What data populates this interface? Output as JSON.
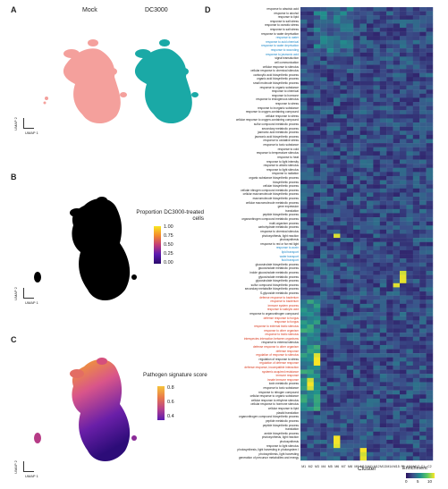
{
  "panels": {
    "a": {
      "letter": "A",
      "labels": [
        "Mock",
        "DC3000"
      ],
      "umap_x": "UMAP 1",
      "umap_y": "UMAP 2",
      "colors": [
        "#f4a09c",
        "#1aa9a6"
      ]
    },
    "b": {
      "letter": "B",
      "legend_title": "Proportion DC3000-treated cells",
      "legend_ticks": [
        "1.00",
        "0.75",
        "0.50",
        "0.25",
        "0.00"
      ],
      "umap_x": "UMAP 1",
      "umap_y": "UMAP 2"
    },
    "c": {
      "letter": "C",
      "legend_title": "Pathogen signature score",
      "legend_ticks": [
        "0.8",
        "0.6",
        "0.4"
      ],
      "umap_x": "UMAP 1",
      "umap_y": "UMAP 2"
    },
    "d": {
      "letter": "D",
      "x_axis_title": "Cluster",
      "legend_title": "Enrichment",
      "legend_ticks": [
        "0",
        "5",
        "10"
      ],
      "clusters": [
        "M1",
        "M2",
        "M3",
        "M4",
        "M5",
        "M6",
        "M7",
        "M8",
        "M9",
        "M10",
        "M11",
        "M12",
        "M13",
        "M14",
        "M15",
        "P1",
        "M16",
        "M17",
        "C1",
        "C2"
      ],
      "terms": [
        {
          "t": "response to abscisic acid",
          "c": "#222"
        },
        {
          "t": "response to alcohol",
          "c": "#222"
        },
        {
          "t": "response to lipid",
          "c": "#222"
        },
        {
          "t": "response to salt stress",
          "c": "#222"
        },
        {
          "t": "response to osmotic stress",
          "c": "#222"
        },
        {
          "t": "response to salt stress",
          "c": "#222"
        },
        {
          "t": "response to water deprivation",
          "c": "#222"
        },
        {
          "t": "response to water",
          "c": "#1e88c8"
        },
        {
          "t": "response to acid chemical",
          "c": "#1e88c8"
        },
        {
          "t": "response to water deprivation",
          "c": "#1e88c8"
        },
        {
          "t": "response to wounding",
          "c": "#1e88c8"
        },
        {
          "t": "response to jasmonic acid",
          "c": "#1e88c8"
        },
        {
          "t": "signal transduction",
          "c": "#222"
        },
        {
          "t": "cell communication",
          "c": "#222"
        },
        {
          "t": "cellular response to stimulus",
          "c": "#222"
        },
        {
          "t": "cellular response to chemical stimulus",
          "c": "#222"
        },
        {
          "t": "carboxylic acid biosynthetic process",
          "c": "#222"
        },
        {
          "t": "organic acid biosynthetic process",
          "c": "#222"
        },
        {
          "t": "small molecule biosynthetic process",
          "c": "#222"
        },
        {
          "t": "response to organic substance",
          "c": "#222"
        },
        {
          "t": "response to chemical",
          "c": "#222"
        },
        {
          "t": "response to hormone",
          "c": "#222"
        },
        {
          "t": "response to endogenous stimulus",
          "c": "#222"
        },
        {
          "t": "response to stress",
          "c": "#222"
        },
        {
          "t": "response to inorganic substance",
          "c": "#222"
        },
        {
          "t": "response to oxygen-containing compound",
          "c": "#222"
        },
        {
          "t": "cellular response to stress",
          "c": "#222"
        },
        {
          "t": "cellular response to oxygen-containing compound",
          "c": "#222"
        },
        {
          "t": "sulfur compound metabolic process",
          "c": "#222"
        },
        {
          "t": "secondary metabolic process",
          "c": "#222"
        },
        {
          "t": "jasmonic acid metabolic process",
          "c": "#222"
        },
        {
          "t": "jasmonic acid biosynthetic process",
          "c": "#222"
        },
        {
          "t": "response to oxidative stress",
          "c": "#222"
        },
        {
          "t": "response to toxic substance",
          "c": "#222"
        },
        {
          "t": "response to cold",
          "c": "#222"
        },
        {
          "t": "response to temperature stimulus",
          "c": "#222"
        },
        {
          "t": "response to heat",
          "c": "#222"
        },
        {
          "t": "response to light intensity",
          "c": "#222"
        },
        {
          "t": "response to abiotic stimulus",
          "c": "#222"
        },
        {
          "t": "response to light stimulus",
          "c": "#222"
        },
        {
          "t": "response to radiation",
          "c": "#222"
        },
        {
          "t": "organic substance biosynthetic process",
          "c": "#222"
        },
        {
          "t": "biosynthetic process",
          "c": "#222"
        },
        {
          "t": "cellular biosynthetic process",
          "c": "#222"
        },
        {
          "t": "cellular nitrogen compound metabolic process",
          "c": "#222"
        },
        {
          "t": "cellular macromolecule biosynthetic process",
          "c": "#222"
        },
        {
          "t": "macromolecule biosynthetic process",
          "c": "#222"
        },
        {
          "t": "cellular macromolecule metabolic process",
          "c": "#222"
        },
        {
          "t": "gene expression",
          "c": "#222"
        },
        {
          "t": "translation",
          "c": "#222"
        },
        {
          "t": "peptide biosynthetic process",
          "c": "#222"
        },
        {
          "t": "organonitrogen compound metabolic process",
          "c": "#222"
        },
        {
          "t": "multi-organism process",
          "c": "#222"
        },
        {
          "t": "carbohydrate metabolic process",
          "c": "#222"
        },
        {
          "t": "response to chemical stimulus",
          "c": "#222"
        },
        {
          "t": "photosynthesis, light reaction",
          "c": "#222"
        },
        {
          "t": "photosynthesis",
          "c": "#222"
        },
        {
          "t": "response to red or far red light",
          "c": "#222"
        },
        {
          "t": "response to auxin",
          "c": "#1e88c8"
        },
        {
          "t": "lipid transport",
          "c": "#1e88c8"
        },
        {
          "t": "water transport",
          "c": "#1e88c8"
        },
        {
          "t": "fluid transport",
          "c": "#1e88c8"
        },
        {
          "t": "glucosinolate biosynthetic process",
          "c": "#222"
        },
        {
          "t": "glucosinolate metabolic process",
          "c": "#222"
        },
        {
          "t": "indole glucosinolate metabolic process",
          "c": "#222"
        },
        {
          "t": "glycosinolate metabolic process",
          "c": "#222"
        },
        {
          "t": "glycosinolate biosynthetic process",
          "c": "#222"
        },
        {
          "t": "sulfur compound biosynthetic process",
          "c": "#222"
        },
        {
          "t": "secondary metabolite biosynthetic process",
          "c": "#222"
        },
        {
          "t": "S-glycoside metabolic process",
          "c": "#222"
        },
        {
          "t": "defense response to bacterium",
          "c": "#d83a1e"
        },
        {
          "t": "response to bacterium",
          "c": "#d83a1e"
        },
        {
          "t": "immune system process",
          "c": "#d83a1e"
        },
        {
          "t": "response to salicylic acid",
          "c": "#d83a1e"
        },
        {
          "t": "response to organonitrogen compound",
          "c": "#222"
        },
        {
          "t": "defense response to fungus",
          "c": "#d83a1e"
        },
        {
          "t": "response to fungus",
          "c": "#d83a1e"
        },
        {
          "t": "response to external biotic stimulus",
          "c": "#d83a1e"
        },
        {
          "t": "response to other organism",
          "c": "#d83a1e"
        },
        {
          "t": "response to biotic stimulus",
          "c": "#d83a1e"
        },
        {
          "t": "interspecies interaction between organisms",
          "c": "#d83a1e"
        },
        {
          "t": "response to external stimulus",
          "c": "#222"
        },
        {
          "t": "defense response to other organism",
          "c": "#d83a1e"
        },
        {
          "t": "defense response",
          "c": "#d83a1e"
        },
        {
          "t": "regulation of response to stimulus",
          "c": "#d83a1e"
        },
        {
          "t": "regulation of response to stress",
          "c": "#222"
        },
        {
          "t": "regulation of defense response",
          "c": "#d83a1e"
        },
        {
          "t": "defense response, incompatible interaction",
          "c": "#d83a1e"
        },
        {
          "t": "systemic acquired resistance",
          "c": "#d83a1e"
        },
        {
          "t": "immune response",
          "c": "#d83a1e"
        },
        {
          "t": "innate immune response",
          "c": "#d83a1e"
        },
        {
          "t": "toxin metabolic process",
          "c": "#222"
        },
        {
          "t": "response to toxic substance",
          "c": "#222"
        },
        {
          "t": "response to nitrogen compound",
          "c": "#222"
        },
        {
          "t": "cellular response to organic substance",
          "c": "#222"
        },
        {
          "t": "cellular response to ethylene stimulus",
          "c": "#222"
        },
        {
          "t": "cellular response to hormone stimulus",
          "c": "#222"
        },
        {
          "t": "cellular response to lipid",
          "c": "#222"
        },
        {
          "t": "plastid translation",
          "c": "#222"
        },
        {
          "t": "organonitrogen compound biosynthetic process",
          "c": "#222"
        },
        {
          "t": "peptide metabolic process",
          "c": "#222"
        },
        {
          "t": "peptide biosynthetic process",
          "c": "#222"
        },
        {
          "t": "translation",
          "c": "#222"
        },
        {
          "t": "amide biosynthetic process",
          "c": "#222"
        },
        {
          "t": "photosynthesis, light reaction",
          "c": "#222"
        },
        {
          "t": "photosynthesis",
          "c": "#222"
        },
        {
          "t": "response to light stimulus",
          "c": "#222"
        },
        {
          "t": "photosynthesis, light harvesting in photosystem I",
          "c": "#222"
        },
        {
          "t": "photosynthesis, light harvesting",
          "c": "#222"
        },
        {
          "t": "generation of precursor metabolites and energy",
          "c": "#222"
        }
      ]
    }
  }
}
